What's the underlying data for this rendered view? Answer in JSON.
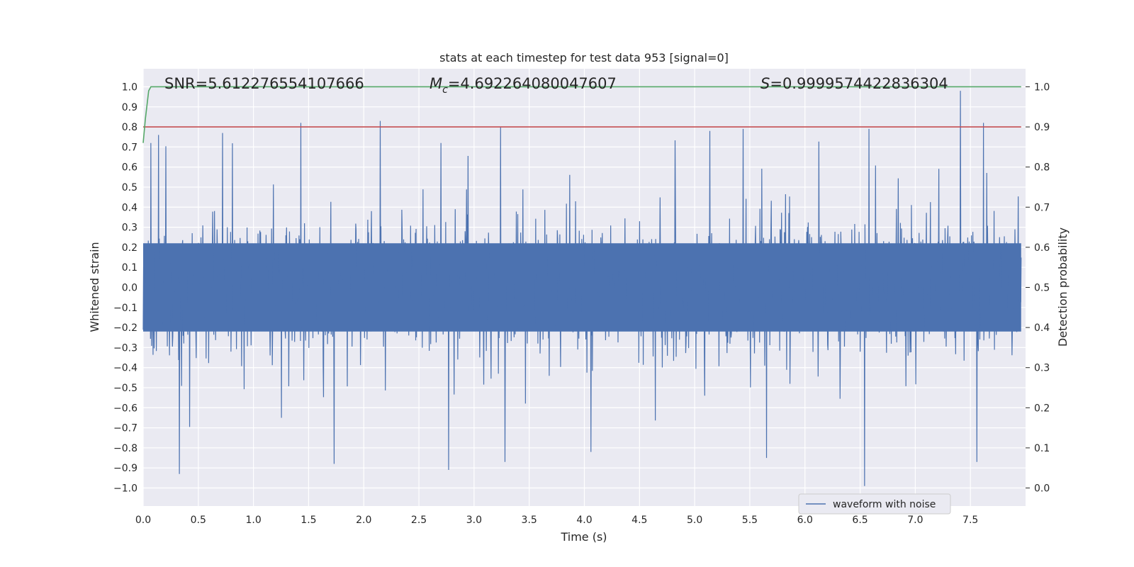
{
  "chart_data": {
    "type": "line",
    "title": "stats at each timestep for test data 953 [signal=0]",
    "xlabel": "Time (s)",
    "ylabel": "Whitened strain",
    "y2label": "Detection probability",
    "xlim": [
      0.0,
      8.0
    ],
    "ylim": [
      -1.09,
      1.09
    ],
    "y2lim": [
      -0.045,
      1.045
    ],
    "xticks": [
      "0.0",
      "0.5",
      "1.0",
      "1.5",
      "2.0",
      "2.5",
      "3.0",
      "3.5",
      "4.0",
      "4.5",
      "5.0",
      "5.5",
      "6.0",
      "6.5",
      "7.0",
      "7.5"
    ],
    "yticks": [
      "1.0",
      "0.9",
      "0.8",
      "0.7",
      "0.6",
      "0.5",
      "0.4",
      "0.3",
      "0.2",
      "0.1",
      "0.0",
      "−0.1",
      "−0.2",
      "−0.3",
      "−0.4",
      "−0.5",
      "−0.6",
      "−0.7",
      "−0.8",
      "−0.9",
      "−1.0"
    ],
    "y2ticks": [
      "1.0",
      "0.9",
      "0.8",
      "0.7",
      "0.6",
      "0.5",
      "0.4",
      "0.3",
      "0.2",
      "0.1",
      "0.0"
    ],
    "series": [
      {
        "name": "waveform with noise",
        "color": "#4c72b0",
        "description": "dense noisy strain signal over 0-8 s",
        "amplitude_core": 0.45,
        "spikes": [
          {
            "t": 0.07,
            "v": 0.72
          },
          {
            "t": 0.14,
            "v": 0.76
          },
          {
            "t": 0.33,
            "v": -0.93
          },
          {
            "t": 0.72,
            "v": 0.77
          },
          {
            "t": 1.43,
            "v": 0.82
          },
          {
            "t": 1.73,
            "v": -0.88
          },
          {
            "t": 2.15,
            "v": 0.83
          },
          {
            "t": 2.77,
            "v": -0.91
          },
          {
            "t": 3.24,
            "v": 0.8
          },
          {
            "t": 3.28,
            "v": -0.87
          },
          {
            "t": 4.06,
            "v": -0.82
          },
          {
            "t": 5.44,
            "v": 0.79
          },
          {
            "t": 5.65,
            "v": -0.85
          },
          {
            "t": 6.54,
            "v": -0.99
          },
          {
            "t": 6.58,
            "v": 0.79
          },
          {
            "t": 7.41,
            "v": 0.98
          },
          {
            "t": 7.56,
            "v": -0.87
          },
          {
            "t": 7.62,
            "v": 0.82
          }
        ]
      },
      {
        "name": "detection probability",
        "color": "#55a868",
        "axis": "right",
        "x": [
          0.0,
          0.02,
          0.05,
          0.07,
          0.1,
          8.0
        ],
        "y": [
          0.86,
          0.92,
          0.99,
          1.0,
          1.0,
          1.0
        ]
      },
      {
        "name": "threshold",
        "color": "#c44e52",
        "axis": "right",
        "x": [
          0.0,
          8.0
        ],
        "y": [
          0.9,
          0.9
        ]
      }
    ],
    "annotations": [
      {
        "label": "SNR=5.612276554107666"
      },
      {
        "symbol": "M",
        "subscript": "c",
        "label": "=4.692264080047607"
      },
      {
        "symbol": "S",
        "label": "=0.9999574422836304"
      }
    ],
    "legend": {
      "position": "lower-right",
      "label": "waveform with noise"
    },
    "grid": true
  }
}
